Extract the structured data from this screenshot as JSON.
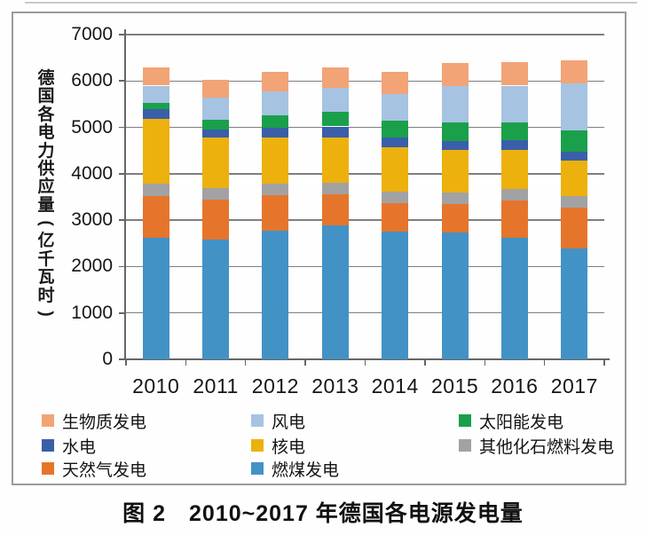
{
  "page": {
    "caption": "图 2　2010~2017 年德国各电源发电量"
  },
  "chart_data": {
    "type": "bar",
    "stacked": true,
    "title": "图 2 2010~2017 年德国各电源发电量",
    "ylabel": "德国各电力供应量(亿千瓦时)",
    "xlabel": "",
    "unit": "亿千瓦时",
    "ylim": [
      0,
      7000
    ],
    "yticks": [
      0,
      1000,
      2000,
      3000,
      4000,
      5000,
      6000,
      7000
    ],
    "grid": true,
    "legend_position": "bottom",
    "categories": [
      "2010",
      "2011",
      "2012",
      "2013",
      "2014",
      "2015",
      "2016",
      "2017"
    ],
    "series": [
      {
        "name": "燃煤发电",
        "color": "#4292C6",
        "values": [
          2630,
          2590,
          2770,
          2880,
          2750,
          2730,
          2620,
          2400
        ]
      },
      {
        "name": "天然气发电",
        "color": "#E6752C",
        "values": [
          890,
          860,
          760,
          670,
          610,
          620,
          810,
          870
        ]
      },
      {
        "name": "其他化石燃料发电",
        "color": "#A2A2A4",
        "values": [
          260,
          250,
          260,
          260,
          250,
          250,
          240,
          250
        ]
      },
      {
        "name": "核电",
        "color": "#EDB10E",
        "values": [
          1410,
          1080,
          990,
          970,
          970,
          920,
          850,
          760
        ]
      },
      {
        "name": "水电",
        "color": "#3A5FA9",
        "values": [
          210,
          180,
          220,
          240,
          200,
          190,
          210,
          200
        ]
      },
      {
        "name": "太阳能发电",
        "color": "#1AA04B",
        "values": [
          120,
          200,
          260,
          310,
          360,
          390,
          380,
          450
        ]
      },
      {
        "name": "风电",
        "color": "#A6C3E2",
        "values": [
          380,
          490,
          510,
          520,
          570,
          790,
          790,
          1020
        ]
      },
      {
        "name": "生物质发电",
        "color": "#F2A476",
        "values": [
          400,
          380,
          430,
          450,
          480,
          500,
          510,
          500
        ]
      }
    ],
    "legend_order": [
      "生物质发电",
      "风电",
      "太阳能发电",
      "水电",
      "核电",
      "其他化石燃料发电",
      "天然气发电",
      "燃煤发电"
    ]
  }
}
